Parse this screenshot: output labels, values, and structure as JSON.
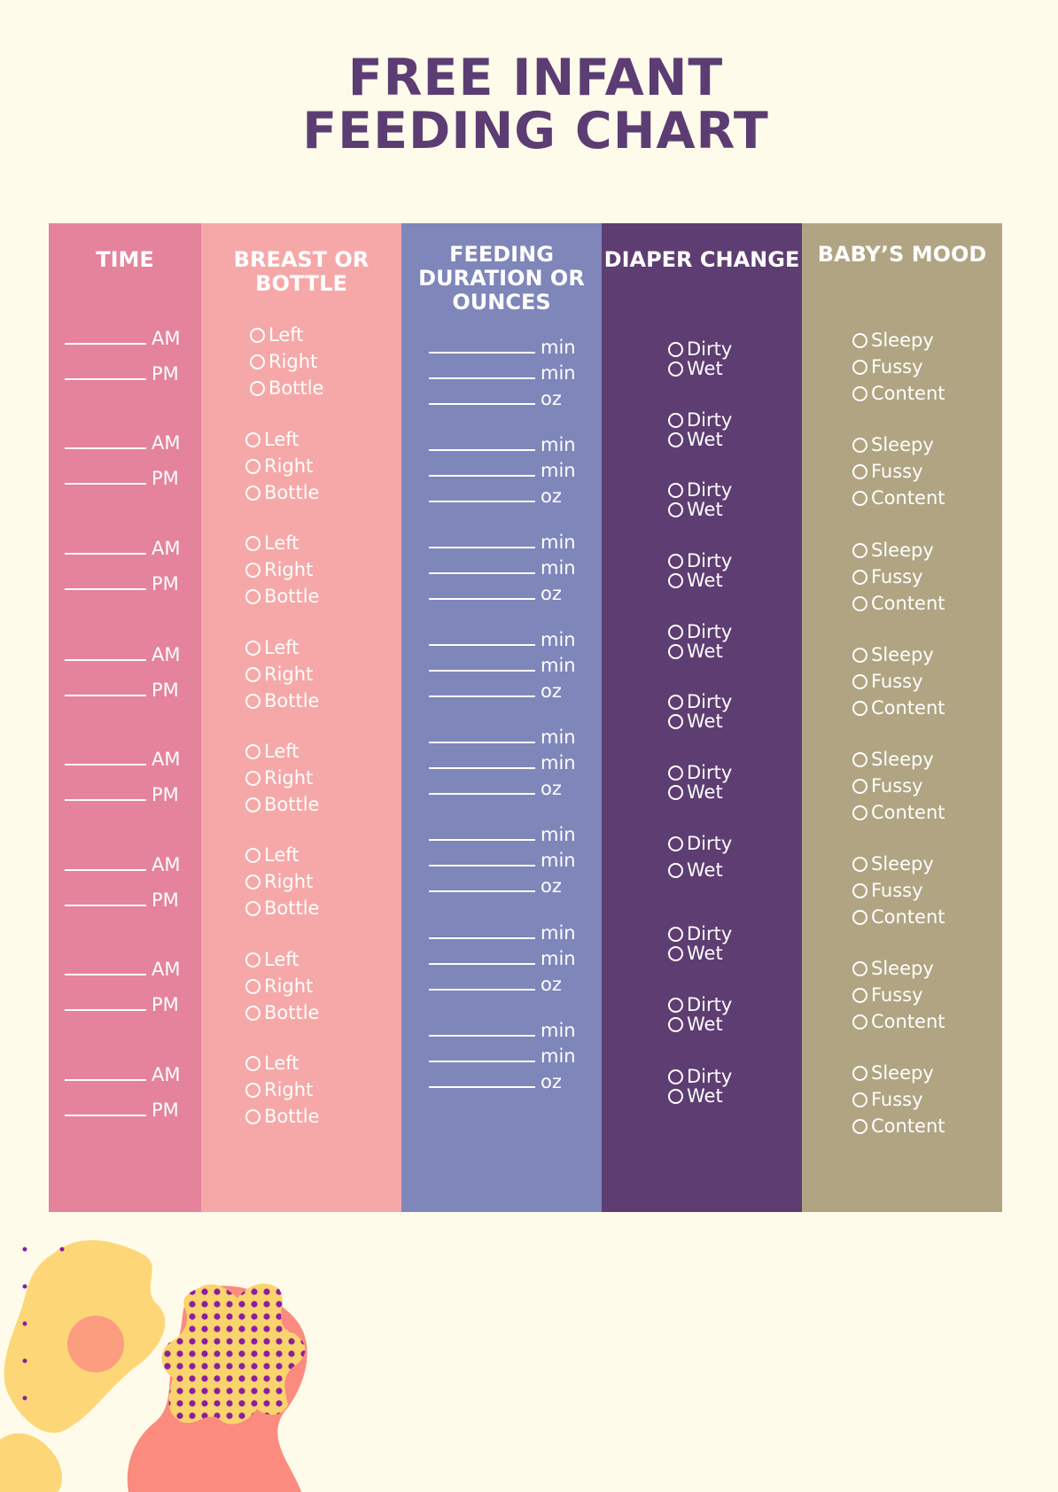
{
  "title": {
    "line1": "FREE INFANT",
    "line2": "FEEDING CHART"
  },
  "columns": {
    "time": {
      "header": "TIME",
      "am_label": "AM",
      "pm_label": "PM",
      "row_count": 8
    },
    "breast_or_bottle": {
      "header": "BREAST OR BOTTLE",
      "options": [
        "Left",
        "Right",
        "Bottle"
      ],
      "row_count": 8
    },
    "feeding_duration": {
      "header": "FEEDING DURATION OR OUNCES",
      "units": [
        "min",
        "min",
        "oz"
      ],
      "row_count": 8
    },
    "diaper_change": {
      "header": "DIAPER CHANGE",
      "options": [
        "Dirty",
        "Wet"
      ],
      "row_count": 11
    },
    "babys_mood": {
      "header": "BABY’S MOOD",
      "options": [
        "Sleepy",
        "Fussy",
        "Content"
      ],
      "row_count": 8
    }
  },
  "colors": {
    "background": "#fffbeb",
    "title": "#5c3d73",
    "time_column": "#e5829c",
    "breast_column": "#f6a8a8",
    "duration_column": "#7f86ba",
    "diaper_column": "#5e3d72",
    "mood_column": "#b0a482"
  }
}
